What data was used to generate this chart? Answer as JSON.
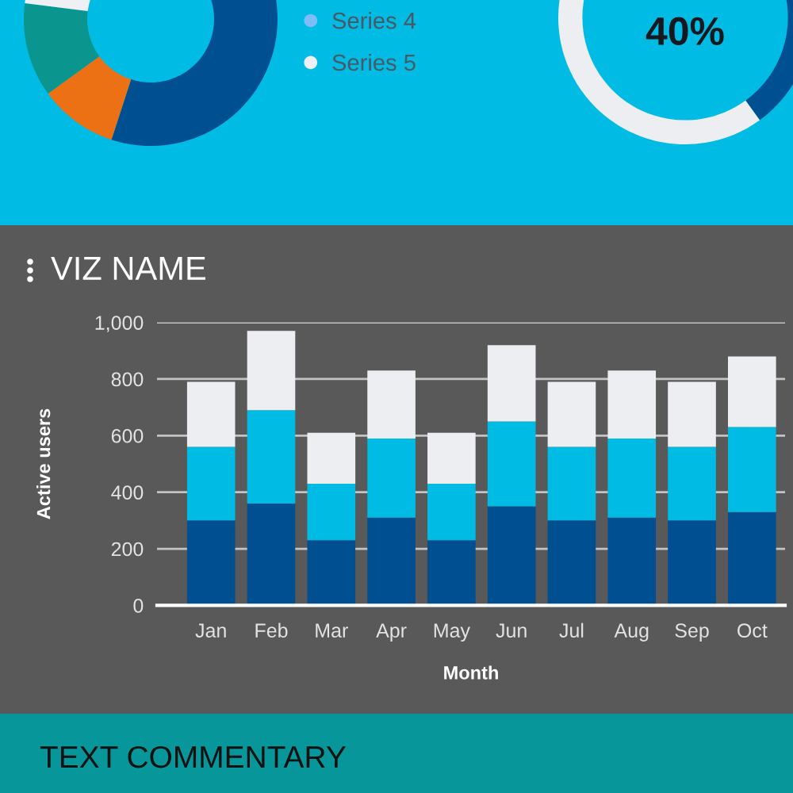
{
  "chart_data": [
    {
      "type": "donut",
      "categories": [
        null,
        null,
        null,
        "Series 4",
        "Series 5"
      ],
      "values": [
        55,
        10,
        12,
        null,
        23
      ],
      "colors": [
        "#005091",
        "#ec7014",
        "#0b958f",
        "#7cbdf7",
        "#eef0f4"
      ],
      "legend": "right"
    },
    {
      "type": "donut",
      "categories": [
        null,
        null
      ],
      "values": [
        40,
        60
      ],
      "colors": [
        "#005091",
        "#eceef2"
      ],
      "annotations": [
        "40%"
      ]
    },
    {
      "type": "bar",
      "title": "VIZ NAME",
      "xlabel": "Month",
      "ylabel": "Active users",
      "categories": [
        "Jan",
        "Feb",
        "Mar",
        "Apr",
        "May",
        "Jun",
        "Jul",
        "Aug",
        "Sep",
        "Oct"
      ],
      "stacked": true,
      "series": [
        {
          "color": "#005091",
          "values": [
            300,
            360,
            230,
            310,
            230,
            350,
            300,
            310,
            300,
            330
          ]
        },
        {
          "color": "#00bce4",
          "values": [
            260,
            330,
            200,
            280,
            200,
            300,
            260,
            280,
            260,
            300
          ]
        },
        {
          "color": "#eceef2",
          "values": [
            230,
            280,
            180,
            240,
            180,
            270,
            230,
            240,
            230,
            250
          ]
        }
      ],
      "ylim": [
        0,
        1000
      ],
      "yticks": [
        0,
        200,
        400,
        600,
        800,
        {
          "value": 1000,
          "label": "1,000"
        }
      ],
      "grid": "y"
    },
    {
      "type": "other",
      "title": "TEXT COMMENTARY"
    }
  ]
}
